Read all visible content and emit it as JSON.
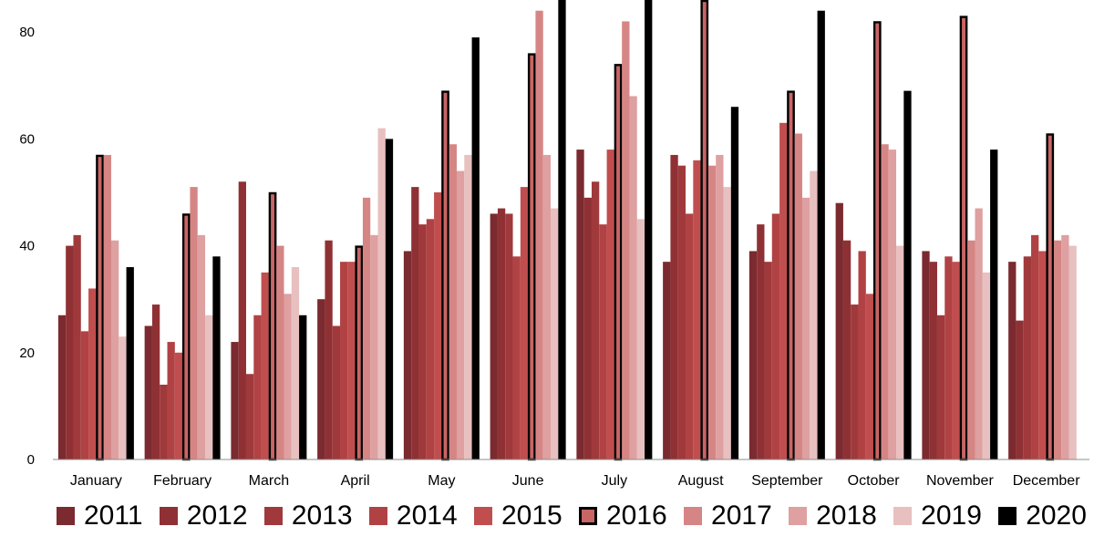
{
  "chart_data": {
    "type": "bar",
    "title": "",
    "xlabel": "",
    "ylabel": "",
    "ylim": [
      0,
      86
    ],
    "yticks": [
      0,
      20,
      40,
      60,
      80
    ],
    "grid": false,
    "legend_position": "bottom",
    "categories": [
      "January",
      "February",
      "March",
      "April",
      "May",
      "June",
      "July",
      "August",
      "September",
      "October",
      "November",
      "December"
    ],
    "series": [
      {
        "name": "2011",
        "color": "#7b2a2f",
        "values": [
          27,
          25,
          22,
          30,
          39,
          46,
          58,
          37,
          39,
          48,
          39,
          37
        ]
      },
      {
        "name": "2012",
        "color": "#8f3134",
        "values": [
          40,
          29,
          52,
          41,
          51,
          47,
          49,
          57,
          44,
          41,
          37,
          26
        ]
      },
      {
        "name": "2013",
        "color": "#a0393b",
        "values": [
          42,
          14,
          16,
          25,
          44,
          46,
          52,
          55,
          37,
          29,
          27,
          38
        ]
      },
      {
        "name": "2014",
        "color": "#b14244",
        "values": [
          24,
          22,
          27,
          37,
          45,
          38,
          44,
          46,
          46,
          39,
          38,
          42
        ]
      },
      {
        "name": "2015",
        "color": "#c04e4e",
        "values": [
          32,
          20,
          35,
          37,
          50,
          51,
          58,
          56,
          63,
          31,
          37,
          39
        ]
      },
      {
        "name": "2016",
        "color": "#c96565",
        "outline": "#000000",
        "values": [
          57,
          46,
          50,
          40,
          69,
          76,
          74,
          88,
          69,
          82,
          83,
          61
        ]
      },
      {
        "name": "2017",
        "color": "#d68585",
        "values": [
          57,
          51,
          40,
          49,
          59,
          84,
          82,
          55,
          61,
          59,
          41,
          41
        ]
      },
      {
        "name": "2018",
        "color": "#dea0a0",
        "values": [
          41,
          42,
          31,
          42,
          54,
          57,
          68,
          57,
          49,
          58,
          47,
          42
        ]
      },
      {
        "name": "2019",
        "color": "#e8c0c0",
        "values": [
          23,
          27,
          36,
          62,
          57,
          47,
          45,
          51,
          54,
          40,
          35,
          40
        ]
      },
      {
        "name": "2020",
        "color": "#000000",
        "values": [
          36,
          38,
          27,
          60,
          79,
          88,
          88,
          66,
          84,
          69,
          58,
          null
        ]
      }
    ]
  }
}
